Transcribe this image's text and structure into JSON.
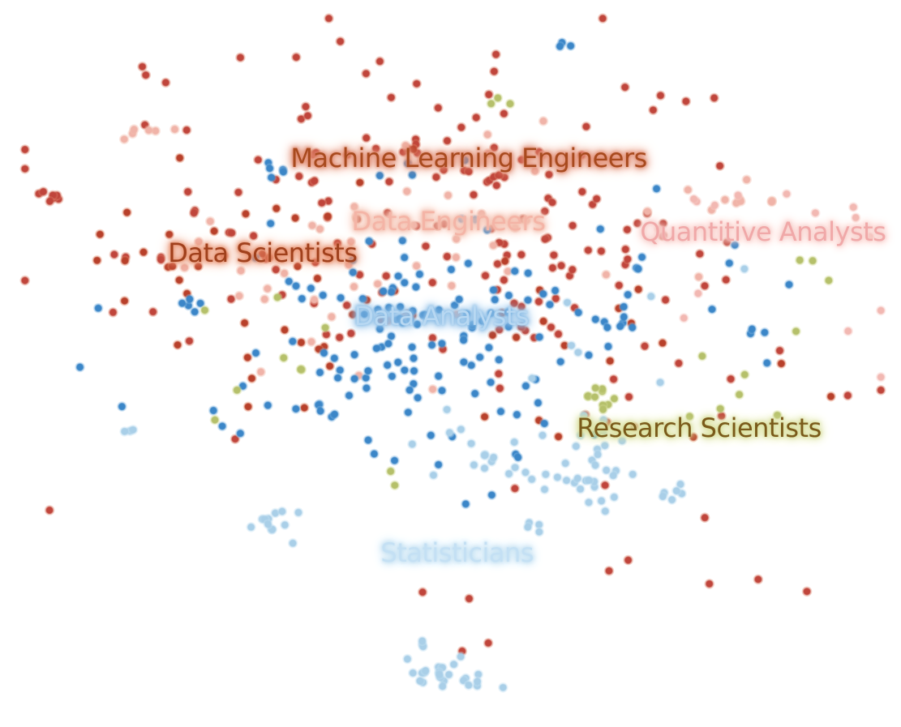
{
  "chart_data": {
    "type": "scatter",
    "title": "",
    "xlabel": "",
    "ylabel": "",
    "grid": false,
    "legend": "none",
    "xlim": [
      0,
      100
    ],
    "ylim": [
      0,
      100
    ],
    "series": [
      {
        "name": "Machine Learning Engineers",
        "color": "#c0443a",
        "glow": "#e08a70",
        "label_color": "#a84a1e",
        "label": {
          "text": "Machine Learning Engineers",
          "x": 51.8,
          "y": 79.2
        },
        "clusters": [
          {
            "cx": 52,
            "cy": 68,
            "sx": 18,
            "sy": 12,
            "n": 140,
            "seed": 11
          },
          {
            "cx": 38,
            "cy": 84,
            "sx": 22,
            "sy": 10,
            "n": 30,
            "seed": 12
          },
          {
            "cx": 4.5,
            "cy": 73.5,
            "sx": 0.8,
            "sy": 0.6,
            "n": 7,
            "seed": 13
          },
          {
            "cx": 33,
            "cy": 85.5,
            "sx": 0.8,
            "sy": 0.5,
            "n": 3,
            "seed": 14
          },
          {
            "cx": 73,
            "cy": 30,
            "sx": 18,
            "sy": 14,
            "n": 14,
            "seed": 15
          },
          {
            "cx": 51.7,
            "cy": 16.5,
            "sx": 0.2,
            "sy": 0.2,
            "n": 1,
            "seed": 16
          },
          {
            "cx": 51,
            "cy": 9,
            "sx": 0.2,
            "sy": 0.2,
            "n": 1,
            "seed": 17
          }
        ]
      },
      {
        "name": "Data Engineers",
        "color": "#f0b3a8",
        "glow": "#f4c0b0",
        "label_color": "#f4b4a6",
        "label": {
          "text": "Data Engineers",
          "x": 49.5,
          "y": 70.2
        },
        "clusters": [
          {
            "cx": 48,
            "cy": 66,
            "sx": 14,
            "sy": 8,
            "n": 40,
            "seed": 21
          },
          {
            "cx": 14.5,
            "cy": 83,
            "sx": 0.9,
            "sy": 0.5,
            "n": 5,
            "seed": 22
          },
          {
            "cx": 81,
            "cy": 73,
            "sx": 5,
            "sy": 2,
            "n": 10,
            "seed": 23
          },
          {
            "cx": 30,
            "cy": 55,
            "sx": 6,
            "sy": 5,
            "n": 8,
            "seed": 24
          }
        ]
      },
      {
        "name": "Data Scientists",
        "color": "#b8402c",
        "glow": "#e8906e",
        "label_color": "#a0401c",
        "label": {
          "text": "Data Scientists",
          "x": 28.2,
          "y": 65.7
        },
        "clusters": [
          {
            "cx": 28,
            "cy": 62,
            "sx": 10,
            "sy": 9,
            "n": 35,
            "seed": 31
          },
          {
            "cx": 60,
            "cy": 50,
            "sx": 16,
            "sy": 10,
            "n": 25,
            "seed": 32
          }
        ]
      },
      {
        "name": "Quantitive Analysts",
        "color": "#f2b8b2",
        "glow": "#f8d0cc",
        "label_color": "#f0a8a8",
        "label": {
          "text": "Quantitive Analysts",
          "x": 85.5,
          "y": 68.7
        },
        "clusters": [
          {
            "cx": 86,
            "cy": 73,
            "sx": 8,
            "sy": 2,
            "n": 8,
            "seed": 41
          },
          {
            "cx": 90,
            "cy": 60,
            "sx": 10,
            "sy": 8,
            "n": 6,
            "seed": 42
          }
        ]
      },
      {
        "name": "Data Analysts",
        "color": "#3b86c8",
        "glow": "#8bbde6",
        "label_color": "#b8d8f2",
        "label": {
          "text": "Data Analysts",
          "x": 48.7,
          "y": 56.7
        },
        "clusters": [
          {
            "cx": 48,
            "cy": 55,
            "sx": 10,
            "sy": 9,
            "n": 130,
            "seed": 51
          },
          {
            "cx": 30,
            "cy": 77.5,
            "sx": 1,
            "sy": 0.6,
            "n": 5,
            "seed": 52
          },
          {
            "cx": 63,
            "cy": 94.5,
            "sx": 0.8,
            "sy": 0.4,
            "n": 3,
            "seed": 53
          },
          {
            "cx": 19,
            "cy": 58,
            "sx": 1.2,
            "sy": 0.8,
            "n": 5,
            "seed": 54
          },
          {
            "cx": 85,
            "cy": 54.5,
            "sx": 1,
            "sy": 0.4,
            "n": 3,
            "seed": 55
          },
          {
            "cx": 68.5,
            "cy": 56,
            "sx": 1.5,
            "sy": 1.5,
            "n": 8,
            "seed": 56
          },
          {
            "cx": 37,
            "cy": 44,
            "sx": 3,
            "sy": 2,
            "n": 6,
            "seed": 57
          },
          {
            "cx": 80,
            "cy": 62,
            "sx": 8,
            "sy": 10,
            "n": 8,
            "seed": 58
          },
          {
            "cx": 20,
            "cy": 50,
            "sx": 8,
            "sy": 8,
            "n": 6,
            "seed": 59
          }
        ]
      },
      {
        "name": "Statisticians",
        "color": "#a9cfe8",
        "glow": "#c6e2f3",
        "label_color": "#c4e0f4",
        "label": {
          "text": "Statisticians",
          "x": 50.5,
          "y": 23.1
        },
        "clusters": [
          {
            "cx": 58,
            "cy": 38,
            "sx": 5,
            "sy": 3,
            "n": 30,
            "seed": 61
          },
          {
            "cx": 65,
            "cy": 33,
            "sx": 3,
            "sy": 2,
            "n": 18,
            "seed": 62
          },
          {
            "cx": 30,
            "cy": 27,
            "sx": 1.4,
            "sy": 1.3,
            "n": 12,
            "seed": 63
          },
          {
            "cx": 50,
            "cy": 6,
            "sx": 2.5,
            "sy": 1.5,
            "n": 24,
            "seed": 64
          },
          {
            "cx": 46.5,
            "cy": 10.5,
            "sx": 0.4,
            "sy": 0.3,
            "n": 3,
            "seed": 65
          },
          {
            "cx": 75.5,
            "cy": 32,
            "sx": 1,
            "sy": 1,
            "n": 6,
            "seed": 66
          },
          {
            "cx": 13,
            "cy": 40.5,
            "sx": 0.4,
            "sy": 0.4,
            "n": 3,
            "seed": 67
          },
          {
            "cx": 60,
            "cy": 27.5,
            "sx": 2,
            "sy": 0.8,
            "n": 4,
            "seed": 68
          },
          {
            "cx": 68,
            "cy": 55,
            "sx": 6,
            "sy": 6,
            "n": 8,
            "seed": 69
          }
        ]
      },
      {
        "name": "Research Scientists",
        "color": "#b5c06a",
        "glow": "#d8df9a",
        "label_color": "#7a5a1a",
        "label": {
          "text": "Research Scientists",
          "x": 78.2,
          "y": 40.8
        },
        "clusters": [
          {
            "cx": 67,
            "cy": 45,
            "sx": 1.3,
            "sy": 1.3,
            "n": 10,
            "seed": 71
          },
          {
            "cx": 82,
            "cy": 44,
            "sx": 3,
            "sy": 3,
            "n": 6,
            "seed": 72
          },
          {
            "cx": 30,
            "cy": 50,
            "sx": 4,
            "sy": 6,
            "n": 8,
            "seed": 73
          },
          {
            "cx": 90,
            "cy": 58,
            "sx": 2,
            "sy": 8,
            "n": 4,
            "seed": 74
          },
          {
            "cx": 55,
            "cy": 88,
            "sx": 1,
            "sy": 1,
            "n": 3,
            "seed": 75
          },
          {
            "cx": 43,
            "cy": 34,
            "sx": 0.5,
            "sy": 1.5,
            "n": 2,
            "seed": 76
          }
        ]
      }
    ]
  }
}
